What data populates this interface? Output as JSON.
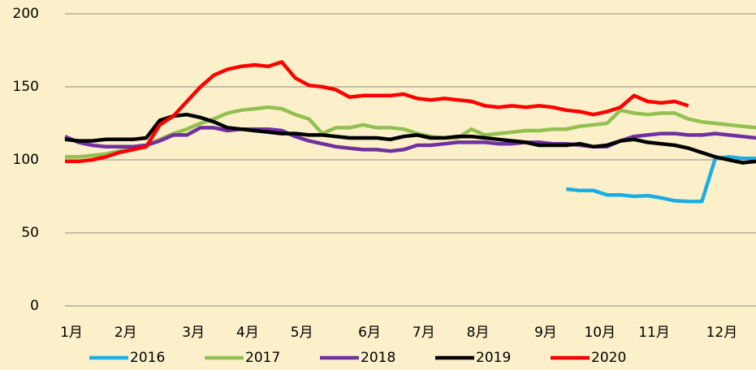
{
  "chart_data": {
    "type": "line",
    "categories": [
      "1月",
      null,
      null,
      null,
      "2月",
      null,
      null,
      null,
      null,
      "3月",
      null,
      null,
      null,
      "4月",
      null,
      null,
      null,
      "5月",
      null,
      null,
      null,
      null,
      "6月",
      null,
      null,
      null,
      "7月",
      null,
      null,
      null,
      "8月",
      null,
      null,
      null,
      null,
      "9月",
      null,
      null,
      null,
      "10月",
      null,
      null,
      null,
      "11月",
      null,
      null,
      null,
      null,
      "12月",
      null,
      null,
      null
    ],
    "series": [
      {
        "name": "2016",
        "color": "#1aaee5",
        "values": [
          null,
          null,
          null,
          null,
          null,
          null,
          null,
          null,
          null,
          null,
          null,
          null,
          null,
          null,
          null,
          null,
          null,
          null,
          null,
          null,
          null,
          null,
          null,
          null,
          null,
          null,
          null,
          null,
          null,
          null,
          null,
          null,
          null,
          null,
          null,
          null,
          null,
          80,
          79,
          79,
          76,
          76,
          75,
          75.5,
          74,
          72,
          71.5,
          71.5,
          101,
          102,
          101,
          101
        ]
      },
      {
        "name": "2017",
        "color": "#92c050",
        "values": [
          102,
          102,
          103,
          104,
          106,
          108,
          110,
          114,
          118,
          121,
          125,
          128,
          132,
          134,
          135,
          136,
          135,
          131,
          128,
          118,
          122,
          122,
          124,
          122,
          122,
          121,
          118,
          116,
          115,
          115,
          121,
          117,
          118,
          119,
          120,
          120,
          121,
          121,
          123,
          124,
          125,
          134,
          132,
          131,
          132,
          132,
          128,
          126,
          125,
          124,
          123,
          122
        ]
      },
      {
        "name": "2018",
        "color": "#7030a0",
        "values": [
          116,
          112,
          110,
          109,
          109,
          109,
          110,
          113,
          117,
          117,
          122,
          122,
          120,
          121,
          121,
          121,
          120,
          116,
          113,
          111,
          109,
          108,
          107,
          107,
          106,
          107,
          110,
          110,
          111,
          112,
          112,
          112,
          111,
          111,
          112,
          112,
          111,
          111,
          110,
          109,
          109,
          113,
          116,
          117,
          118,
          118,
          117,
          117,
          118,
          117,
          116,
          115
        ]
      },
      {
        "name": "2019",
        "color": "#000000",
        "values": [
          114,
          113,
          113,
          114,
          114,
          114,
          115,
          127,
          130,
          131,
          129,
          126,
          122,
          121,
          120,
          119,
          118,
          118,
          117,
          117,
          116,
          115,
          115,
          115,
          114,
          116,
          117,
          115,
          115,
          116,
          116,
          115,
          114,
          113,
          112,
          110,
          110,
          110,
          111,
          109,
          110,
          113,
          114,
          112,
          111,
          110,
          108,
          105,
          102,
          100,
          98,
          99
        ]
      },
      {
        "name": "2020",
        "color": "#ff0000",
        "values": [
          99,
          99,
          100,
          102,
          105,
          107,
          109,
          124,
          130,
          140,
          150,
          158,
          162,
          164,
          165,
          164,
          167,
          156,
          151,
          150,
          148,
          143,
          144,
          144,
          144,
          145,
          142,
          141,
          142,
          141,
          140,
          137,
          136,
          137,
          136,
          137,
          136,
          134,
          133,
          131,
          133,
          136,
          144,
          140,
          139,
          140,
          137,
          null,
          null,
          null,
          null,
          null
        ]
      }
    ],
    "ylim": [
      0,
      200
    ],
    "yticks": [
      0,
      50,
      100,
      150,
      200
    ],
    "grid": true,
    "legend": "bottom"
  }
}
